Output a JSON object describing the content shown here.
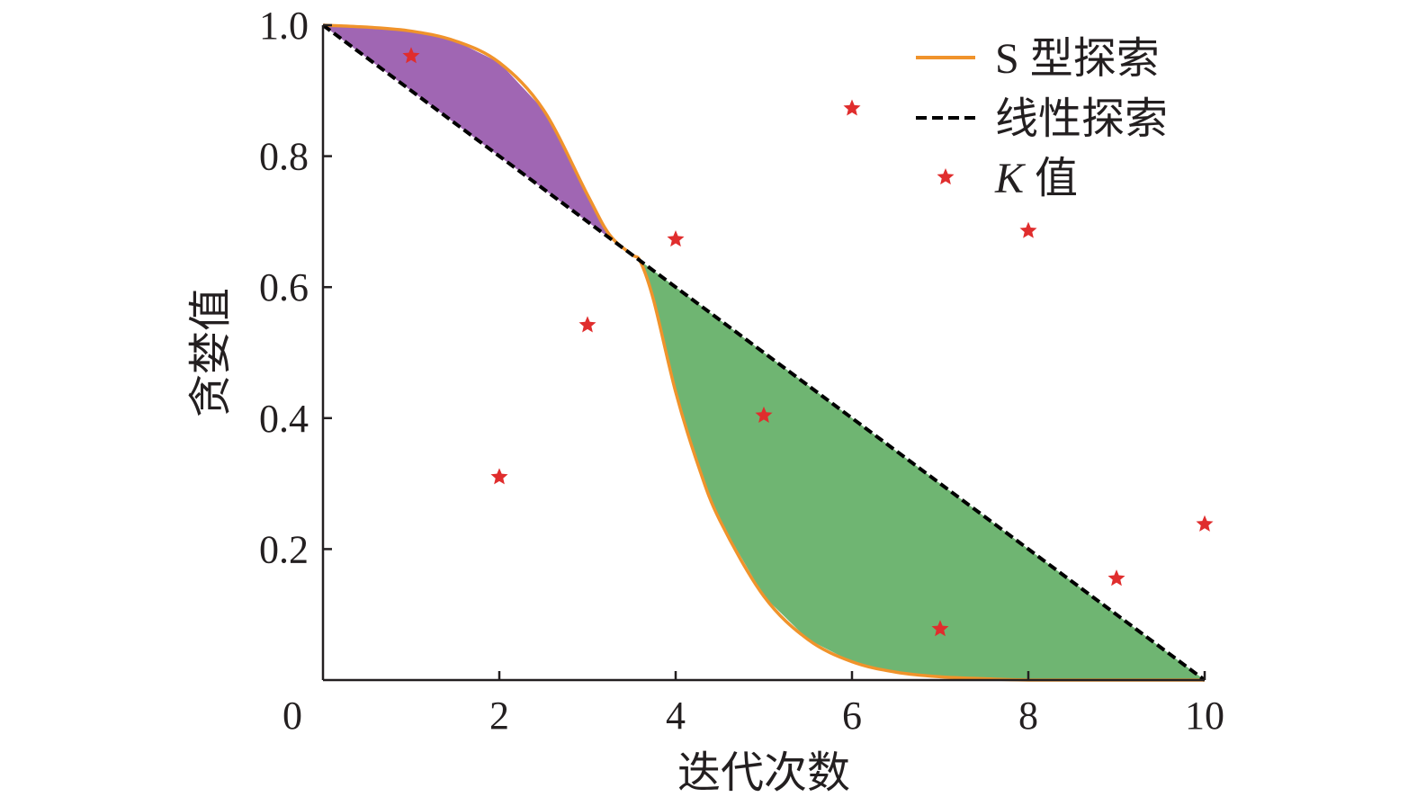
{
  "chart_data": {
    "type": "line",
    "xlabel": "迭代次数",
    "ylabel": "贪婪值",
    "xlim": [
      0,
      10
    ],
    "ylim": [
      0,
      1.0
    ],
    "x_ticks": [
      0,
      2,
      4,
      6,
      8,
      10
    ],
    "x_tick_labels": [
      "0",
      "2",
      "4",
      "6",
      "8",
      "10"
    ],
    "y_ticks": [
      0.2,
      0.4,
      0.6,
      0.8,
      1.0
    ],
    "y_tick_labels": [
      "0.2",
      "0.4",
      "0.6",
      "0.8",
      "1.0"
    ],
    "grid": false,
    "legend_position": "top-right",
    "series": [
      {
        "name": "S 型探索",
        "kind": "line",
        "color": "#f0932b",
        "style": "solid",
        "x": [
          0,
          0.5,
          1,
          1.5,
          2,
          2.5,
          3,
          3.25,
          3.5,
          3.6,
          3.75,
          4,
          4.25,
          4.5,
          5,
          5.5,
          6,
          6.5,
          7,
          7.5,
          8,
          9,
          10
        ],
        "values": [
          1.0,
          0.997,
          0.991,
          0.976,
          0.943,
          0.871,
          0.741,
          0.68,
          0.65,
          0.639,
          0.58,
          0.44,
          0.33,
          0.244,
          0.128,
          0.062,
          0.028,
          0.012,
          0.005,
          0.002,
          0.0,
          0.0,
          0.0
        ]
      },
      {
        "name": "线性探索",
        "kind": "line",
        "color": "#000000",
        "style": "dashed",
        "x": [
          0,
          10
        ],
        "values": [
          1.0,
          0.0
        ]
      },
      {
        "name": "K 值",
        "kind": "scatter",
        "marker": "star",
        "color": "#e02d2d",
        "x": [
          1,
          2,
          3,
          4,
          5,
          6,
          7,
          8,
          9,
          10
        ],
        "values": [
          0.953,
          0.31,
          0.542,
          0.673,
          0.404,
          0.873,
          0.078,
          0.686,
          0.155,
          0.238
        ]
      }
    ],
    "shaded_regions": [
      {
        "between": [
          "S 型探索",
          "线性探索"
        ],
        "x_range": [
          0,
          3.6
        ],
        "color": "#a066b3"
      },
      {
        "between": [
          "线性探索",
          "S 型探索"
        ],
        "x_range": [
          3.6,
          10
        ],
        "color": "#6fb572"
      }
    ],
    "legend": [
      {
        "label_main": "S 型探索",
        "label_italic": "",
        "symbol": "solid-line",
        "color": "#f0932b"
      },
      {
        "label_main": "线性探索",
        "label_italic": "",
        "symbol": "dashed-line",
        "color": "#000000"
      },
      {
        "label_main": " 值",
        "label_italic": "K",
        "symbol": "star",
        "color": "#e02d2d"
      }
    ]
  }
}
